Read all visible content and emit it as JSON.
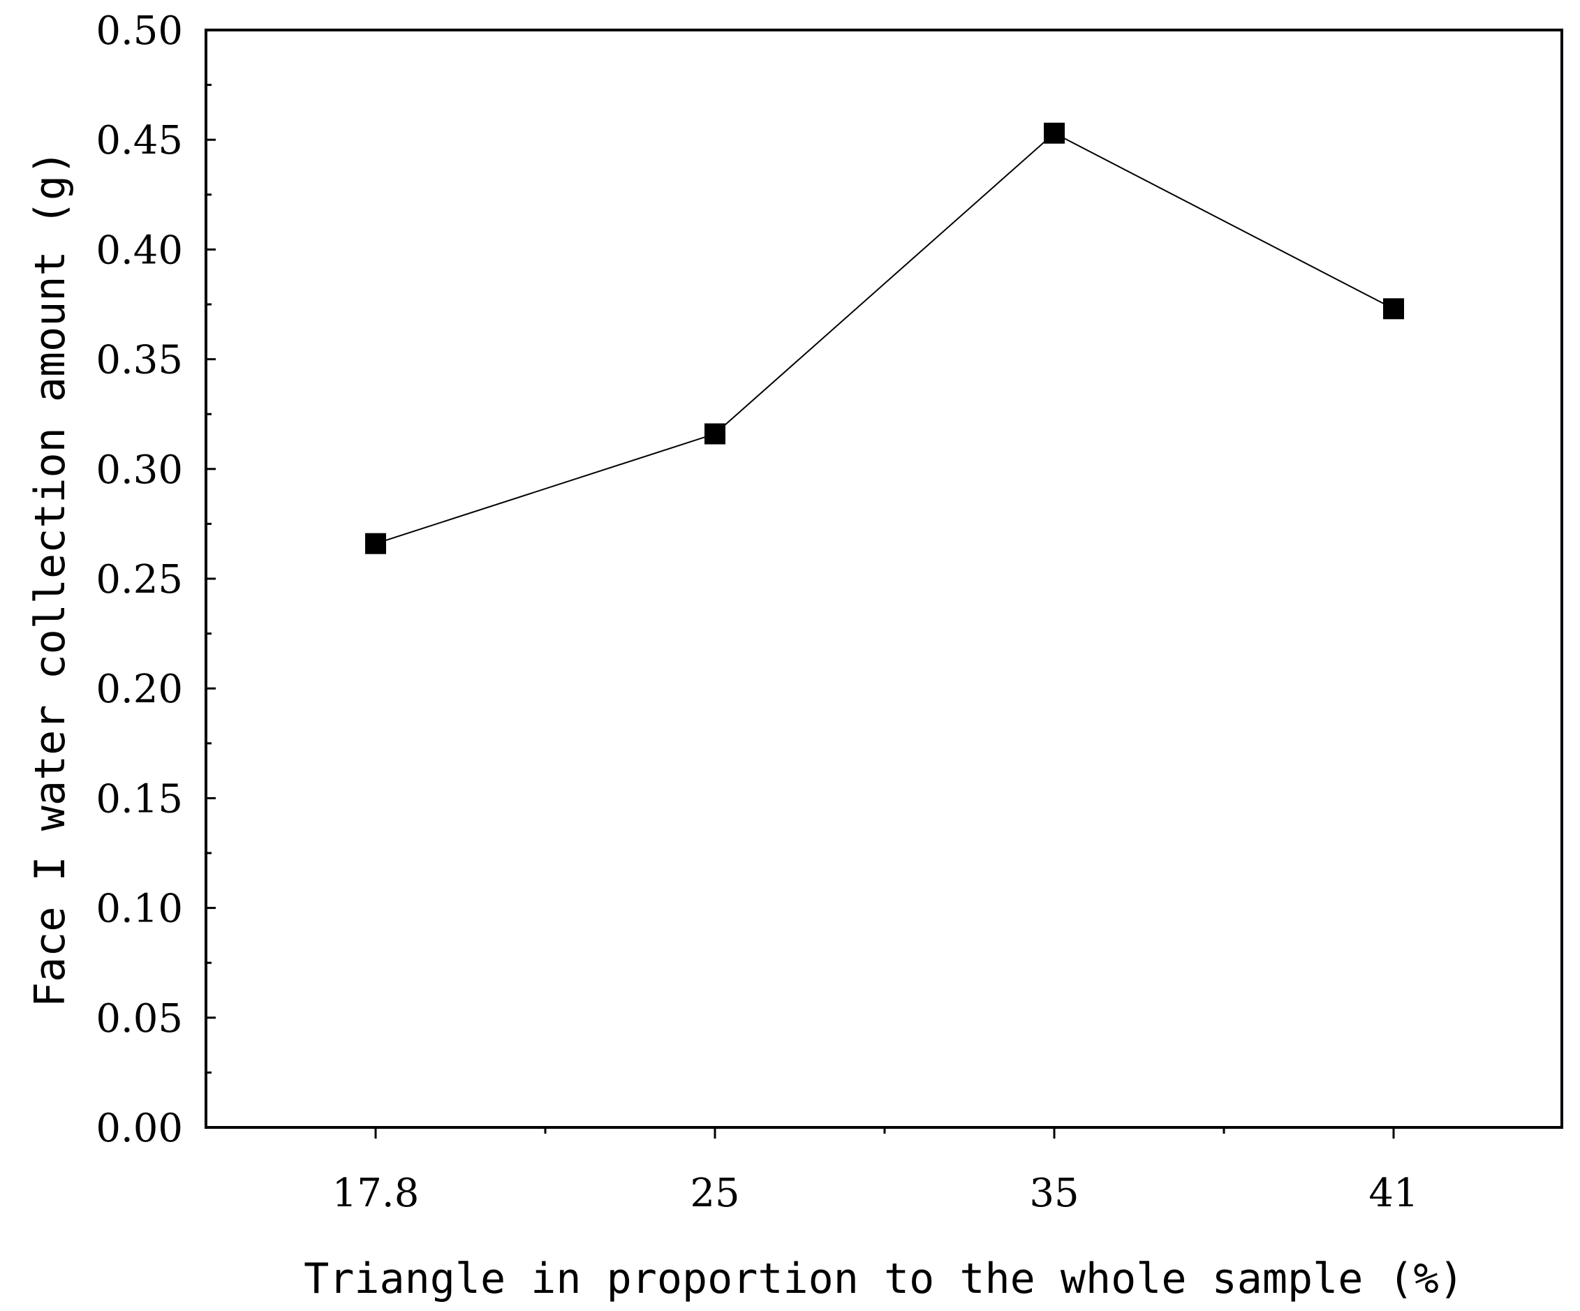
{
  "chart_data": {
    "type": "line",
    "title": "",
    "xlabel": "Triangle in proportion to the whole sample (%)",
    "ylabel": "Face I water collection amount (g)",
    "categories": [
      "17.8",
      "25",
      "35",
      "41"
    ],
    "series": [
      {
        "name": "Face I water collection amount",
        "values": [
          0.266,
          0.316,
          0.453,
          0.373
        ],
        "marker": "square",
        "color": "#000000"
      }
    ],
    "ylim": [
      0,
      0.5
    ],
    "yticks": [
      "0.00",
      "0.05",
      "0.10",
      "0.15",
      "0.20",
      "0.25",
      "0.30",
      "0.35",
      "0.40",
      "0.45",
      "0.50"
    ],
    "ytick_values": [
      0,
      0.05,
      0.1,
      0.15,
      0.2,
      0.25,
      0.3,
      0.35,
      0.4,
      0.45,
      0.5
    ],
    "grid": false,
    "legend": "none"
  }
}
